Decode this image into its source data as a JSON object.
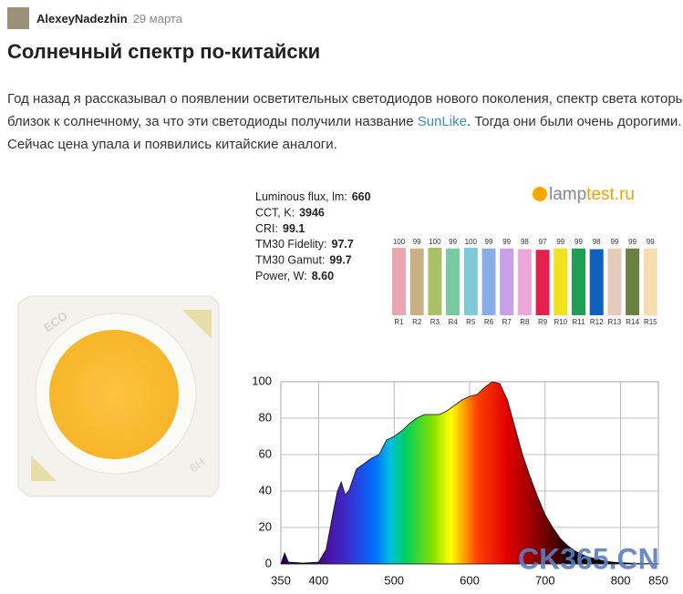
{
  "header": {
    "author": "AlexeyNadezhin",
    "date": "29 марта"
  },
  "title": "Солнечный спектр по-китайски",
  "paragraph": {
    "before": "Год назад я рассказывал о появлении осветительных светодиодов нового поколения, спектр света которых близок к солнечному, за что эти светодиоды получили название ",
    "link": "SunLike",
    "after": ". Тогда они были очень дорогими. Сейчас цена упала и появились китайские аналоги."
  },
  "figure": {
    "chip": {
      "mark1": "ECO",
      "mark2": "6H"
    },
    "logo": {
      "part1": "lamp",
      "part2": "test.ru"
    },
    "stats": [
      {
        "label": "Luminous flux, lm:",
        "value": 660
      },
      {
        "label": "CCT, K:",
        "value": 3946
      },
      {
        "label": "CRI:",
        "value": 99.1
      },
      {
        "label": "TM30 Fidelity:",
        "value": 97.7
      },
      {
        "label": "TM30 Gamut:",
        "value": 99.7
      },
      {
        "label": "Power, W:",
        "value": "8.60"
      }
    ],
    "cri_chart": {
      "type": "bar",
      "categories": [
        "R1",
        "R2",
        "R3",
        "R4",
        "R5",
        "R6",
        "R7",
        "R8",
        "R9",
        "R10",
        "R11",
        "R12",
        "R13",
        "R14",
        "R15"
      ],
      "values": [
        100,
        99,
        100,
        99,
        100,
        99,
        99,
        98,
        97,
        99,
        99,
        98,
        99,
        99,
        99
      ],
      "colors": [
        "#e8a7b2",
        "#c9b185",
        "#a9c064",
        "#79c9a1",
        "#7ec8d9",
        "#88aee8",
        "#c8a0ea",
        "#eca8d8",
        "#e6204e",
        "#f2e21e",
        "#1f9f52",
        "#1060c0",
        "#e6cbbd",
        "#6b8142",
        "#f8ddb2"
      ],
      "ylim": [
        0,
        100
      ]
    },
    "spectrum_chart": {
      "type": "area",
      "x": [
        350,
        355,
        360,
        380,
        400,
        410,
        420,
        425,
        430,
        435,
        440,
        450,
        460,
        470,
        480,
        490,
        500,
        510,
        520,
        530,
        540,
        550,
        560,
        570,
        580,
        590,
        600,
        610,
        620,
        630,
        640,
        650,
        660,
        670,
        680,
        690,
        700,
        710,
        720,
        730,
        740,
        750,
        760,
        770,
        780,
        790,
        800,
        820,
        850
      ],
      "values": [
        0,
        6,
        1,
        0.5,
        1,
        8,
        30,
        40,
        45,
        38,
        40,
        52,
        55,
        58,
        60,
        68,
        70,
        73,
        77,
        80,
        82,
        82,
        82,
        84,
        87,
        90,
        92,
        93,
        97,
        100,
        99,
        90,
        75,
        60,
        48,
        37,
        27,
        20,
        14,
        10,
        7,
        5,
        3.5,
        2.5,
        1.5,
        1,
        0.7,
        0.3,
        0
      ],
      "xlim": [
        350,
        850
      ],
      "ylim": [
        0,
        100
      ],
      "xticks": [
        350,
        400,
        500,
        600,
        700,
        800,
        850
      ],
      "yticks": [
        0,
        20,
        40,
        60,
        80,
        100
      ],
      "grid": true
    },
    "watermark": "CK365.CN"
  }
}
